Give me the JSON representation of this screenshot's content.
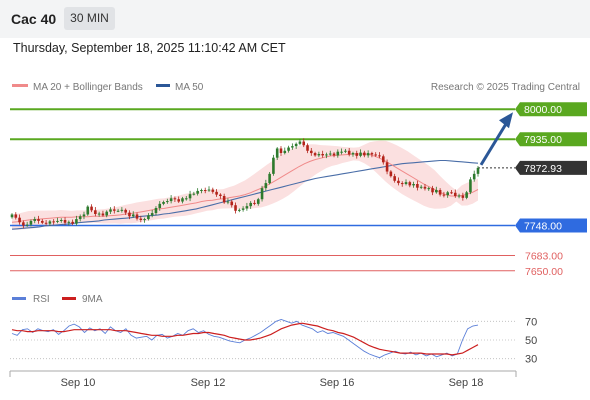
{
  "header": {
    "symbol": "Cac 40",
    "timeframe": "30 MIN",
    "datetime": "Thursday, September 18, 2025 11:10:42 AM CET"
  },
  "legend": {
    "ma20_bb": "MA 20 + Bollinger Bands",
    "ma50": "MA 50",
    "copyright": "Research © 2025 Trading Central",
    "rsi": "RSI",
    "rsi_ma": "9MA"
  },
  "colors": {
    "candle_up": "#2d7a2d",
    "candle_down": "#b3231a",
    "ma20": "#f08a8a",
    "ma50": "#4a6ea8",
    "bollinger_fill": "#fbe0e0",
    "resistance": "#5aa820",
    "current_price": "#333333",
    "pivot": "#2f6be0",
    "support": "#e06060",
    "arrow": "#2b5797",
    "rsi": "#5b7fd8",
    "rsi_ma": "#cc1f1f"
  },
  "chart_data": [
    {
      "type": "candlestick",
      "title": "Cac 40",
      "timeframe": "30 MIN",
      "x_ticks": [
        "Sep 10",
        "Sep 12",
        "Sep 16",
        "Sep 18"
      ],
      "ylim": [
        7630,
        8020
      ],
      "levels": [
        {
          "value": 8000.0,
          "label": "8000.00",
          "role": "resistance"
        },
        {
          "value": 7935.0,
          "label": "7935.00",
          "role": "resistance"
        },
        {
          "value": 7872.93,
          "label": "7872.93",
          "role": "current"
        },
        {
          "value": 7748.0,
          "label": "7748.00",
          "role": "pivot"
        },
        {
          "value": 7683.0,
          "label": "7683.00",
          "role": "support"
        },
        {
          "value": 7650.0,
          "label": "7650.00",
          "role": "support"
        }
      ],
      "closes": [
        7772,
        7765,
        7755,
        7748,
        7750,
        7758,
        7762,
        7758,
        7754,
        7752,
        7757,
        7756,
        7758,
        7760,
        7754,
        7756,
        7752,
        7762,
        7768,
        7772,
        7789,
        7781,
        7773,
        7774,
        7770,
        7778,
        7783,
        7780,
        7780,
        7782,
        7776,
        7768,
        7772,
        7763,
        7760,
        7762,
        7770,
        7775,
        7786,
        7795,
        7799,
        7801,
        7807,
        7805,
        7800,
        7807,
        7807,
        7816,
        7817,
        7823,
        7825,
        7824,
        7826,
        7821,
        7815,
        7812,
        7798,
        7800,
        7792,
        7780,
        7782,
        7785,
        7790,
        7797,
        7795,
        7805,
        7829,
        7840,
        7860,
        7895,
        7915,
        7905,
        7910,
        7917,
        7920,
        7925,
        7930,
        7922,
        7910,
        7905,
        7900,
        7903,
        7900,
        7902,
        7904,
        7900,
        7908,
        7908,
        7910,
        7902,
        7905,
        7899,
        7906,
        7900,
        7905,
        7902,
        7900,
        7898,
        7885,
        7865,
        7855,
        7845,
        7840,
        7838,
        7842,
        7835,
        7838,
        7830,
        7832,
        7828,
        7829,
        7820,
        7825,
        7815,
        7814,
        7820,
        7819,
        7812,
        7813,
        7808,
        7820,
        7848,
        7860,
        7872.93
      ],
      "ma20": [
        7755,
        7756,
        7758,
        7760,
        7761,
        7762,
        7763,
        7764,
        7765,
        7766,
        7766,
        7766,
        7767,
        7767,
        7767,
        7768,
        7768,
        7768,
        7769,
        7770,
        7771,
        7773,
        7774,
        7776,
        7778,
        7780,
        7782,
        7784,
        7785,
        7787,
        7789,
        7791,
        7793,
        7795,
        7797,
        7800,
        7802,
        7803,
        7805,
        7806,
        7808,
        7810,
        7812,
        7815,
        7819,
        7824,
        7829,
        7835,
        7841,
        7848,
        7855,
        7862,
        7869,
        7876,
        7882,
        7887,
        7891,
        7894,
        7897,
        7899,
        7900,
        7901,
        7902,
        7903,
        7903,
        7903,
        7902,
        7898,
        7893,
        7887,
        7880,
        7873,
        7866,
        7859,
        7852,
        7845,
        7838,
        7832,
        7826,
        7820,
        7815,
        7812,
        7812,
        7813,
        7816,
        7820,
        7826
      ],
      "ma50": [
        7740,
        7741,
        7742,
        7743,
        7744,
        7745,
        7747,
        7748,
        7749,
        7750,
        7751,
        7752,
        7754,
        7755,
        7756,
        7757,
        7758,
        7760,
        7761,
        7762,
        7763,
        7764,
        7765,
        7767,
        7768,
        7769,
        7770,
        7771,
        7773,
        7774,
        7776,
        7778,
        7780,
        7782,
        7784,
        7787,
        7790,
        7793,
        7796,
        7799,
        7802,
        7805,
        7808,
        7811,
        7814,
        7817,
        7820,
        7823,
        7826,
        7829,
        7832,
        7835,
        7838,
        7841,
        7844,
        7847,
        7850,
        7852,
        7854,
        7856,
        7858,
        7860,
        7862,
        7864,
        7866,
        7868,
        7870,
        7872,
        7874,
        7876,
        7878,
        7880,
        7882,
        7883,
        7884,
        7885,
        7886,
        7887,
        7888,
        7889,
        7889,
        7888,
        7887,
        7886,
        7885,
        7884,
        7883
      ]
    },
    {
      "type": "line",
      "title": "RSI",
      "y_ticks": [
        70,
        50,
        30
      ],
      "ylim": [
        20,
        80
      ],
      "series": [
        {
          "name": "RSI",
          "values": [
            57,
            55,
            61,
            62,
            58,
            62,
            60,
            59,
            61,
            56,
            60,
            65,
            67,
            64,
            58,
            63,
            60,
            62,
            57,
            64,
            60,
            58,
            62,
            55,
            52,
            53,
            54,
            50,
            55,
            56,
            52,
            54,
            57,
            55,
            60,
            62,
            58,
            60,
            56,
            54,
            53,
            51,
            49,
            48,
            47,
            50,
            52,
            55,
            58,
            62,
            66,
            70,
            72,
            70,
            68,
            70,
            66,
            64,
            62,
            58,
            60,
            57,
            58,
            56,
            54,
            50,
            46,
            42,
            38,
            35,
            33,
            31,
            34,
            36,
            38,
            36,
            35,
            37,
            34,
            36,
            33,
            35,
            32,
            34,
            36,
            33,
            35,
            50,
            62,
            65,
            66
          ]
        },
        {
          "name": "9MA",
          "values": [
            61,
            60,
            60,
            59,
            59,
            60,
            60,
            60,
            60,
            59,
            59,
            60,
            61,
            61,
            61,
            61,
            61,
            61,
            61,
            61,
            60,
            60,
            60,
            59,
            58,
            57,
            56,
            55,
            55,
            54,
            54,
            54,
            55,
            55,
            56,
            57,
            57,
            58,
            58,
            57,
            56,
            55,
            53,
            52,
            51,
            50,
            50,
            51,
            52,
            54,
            56,
            59,
            62,
            64,
            66,
            67,
            68,
            67,
            66,
            65,
            63,
            61,
            60,
            58,
            57,
            55,
            53,
            50,
            47,
            44,
            42,
            40,
            39,
            38,
            37,
            36,
            36,
            36,
            36,
            36,
            35,
            35,
            35,
            35,
            35,
            34,
            35,
            36,
            39,
            42,
            45
          ]
        }
      ]
    }
  ]
}
